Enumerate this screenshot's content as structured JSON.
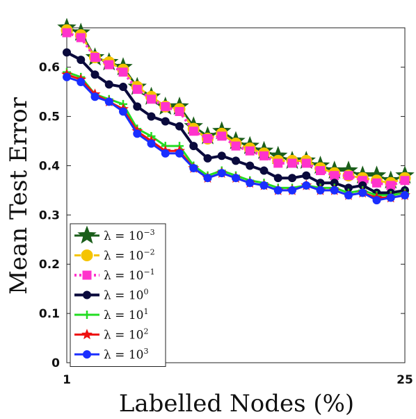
{
  "chart_data": {
    "type": "line",
    "xlabel": "Labelled Nodes (%)",
    "ylabel": "Mean Test Error",
    "xlim": [
      1,
      25
    ],
    "ylim": [
      0,
      0.68
    ],
    "xticks": [
      "1",
      "25"
    ],
    "yticks": [
      "0",
      "0.1",
      "0.2",
      "0.3",
      "0.4",
      "0.5",
      "0.6"
    ],
    "legend_position": "bottom-left",
    "x": [
      1,
      2,
      3,
      4,
      5,
      6,
      7,
      8,
      9,
      10,
      11,
      12,
      13,
      14,
      15,
      16,
      17,
      18,
      19,
      20,
      21,
      22,
      23,
      24,
      25
    ],
    "series": [
      {
        "name": "λ = 10^-3",
        "legend_base": "λ = 10",
        "legend_exp": "−3",
        "color": "#1b5e1b",
        "marker": "star",
        "line": "solid",
        "values": [
          0.68,
          0.67,
          0.62,
          0.61,
          0.6,
          0.56,
          0.54,
          0.52,
          0.52,
          0.48,
          0.46,
          0.47,
          0.45,
          0.44,
          0.43,
          0.42,
          0.41,
          0.41,
          0.4,
          0.39,
          0.39,
          0.38,
          0.38,
          0.37,
          0.38
        ]
      },
      {
        "name": "λ = 10^-2",
        "legend_base": "λ = 10",
        "legend_exp": "−2",
        "color": "#f5c400",
        "marker": "circle",
        "line": "dashed",
        "values": [
          0.675,
          0.665,
          0.62,
          0.61,
          0.595,
          0.56,
          0.54,
          0.52,
          0.515,
          0.475,
          0.455,
          0.465,
          0.445,
          0.435,
          0.425,
          0.41,
          0.41,
          0.41,
          0.395,
          0.385,
          0.38,
          0.375,
          0.37,
          0.365,
          0.375
        ]
      },
      {
        "name": "λ = 10^-1",
        "legend_base": "λ = 10",
        "legend_exp": "−1",
        "color": "#ff33cc",
        "marker": "square",
        "line": "dotted",
        "values": [
          0.67,
          0.66,
          0.62,
          0.605,
          0.59,
          0.555,
          0.535,
          0.52,
          0.51,
          0.47,
          0.455,
          0.46,
          0.44,
          0.43,
          0.42,
          0.405,
          0.405,
          0.405,
          0.39,
          0.38,
          0.38,
          0.37,
          0.365,
          0.36,
          0.37
        ]
      },
      {
        "name": "λ = 10^0",
        "legend_base": "λ = 10",
        "legend_exp": "0",
        "color": "#0a0a3c",
        "marker": "circle",
        "line": "solid",
        "values": [
          0.63,
          0.615,
          0.585,
          0.565,
          0.56,
          0.52,
          0.5,
          0.49,
          0.48,
          0.44,
          0.415,
          0.42,
          0.41,
          0.4,
          0.39,
          0.375,
          0.375,
          0.38,
          0.365,
          0.365,
          0.355,
          0.36,
          0.345,
          0.345,
          0.35
        ]
      },
      {
        "name": "λ = 10^1",
        "legend_base": "λ = 10",
        "legend_exp": "1",
        "color": "#22dd22",
        "marker": "plus",
        "line": "solid",
        "values": [
          0.59,
          0.58,
          0.545,
          0.535,
          0.525,
          0.475,
          0.46,
          0.44,
          0.44,
          0.4,
          0.38,
          0.39,
          0.38,
          0.37,
          0.365,
          0.355,
          0.355,
          0.36,
          0.355,
          0.355,
          0.345,
          0.35,
          0.34,
          0.34,
          0.345
        ]
      },
      {
        "name": "λ = 10^2",
        "legend_base": "λ = 10",
        "legend_exp": "2",
        "color": "#ee1111",
        "marker": "star",
        "line": "solid",
        "values": [
          0.585,
          0.575,
          0.545,
          0.53,
          0.515,
          0.47,
          0.45,
          0.43,
          0.43,
          0.395,
          0.375,
          0.385,
          0.375,
          0.365,
          0.36,
          0.35,
          0.35,
          0.36,
          0.35,
          0.35,
          0.34,
          0.345,
          0.335,
          0.335,
          0.34
        ]
      },
      {
        "name": "λ = 10^3",
        "legend_base": "λ = 10",
        "legend_exp": "3",
        "color": "#1a2eff",
        "marker": "circle",
        "line": "solid",
        "values": [
          0.58,
          0.57,
          0.54,
          0.53,
          0.51,
          0.465,
          0.445,
          0.425,
          0.425,
          0.395,
          0.375,
          0.385,
          0.375,
          0.365,
          0.36,
          0.35,
          0.35,
          0.36,
          0.35,
          0.35,
          0.34,
          0.345,
          0.33,
          0.335,
          0.34
        ]
      }
    ]
  }
}
